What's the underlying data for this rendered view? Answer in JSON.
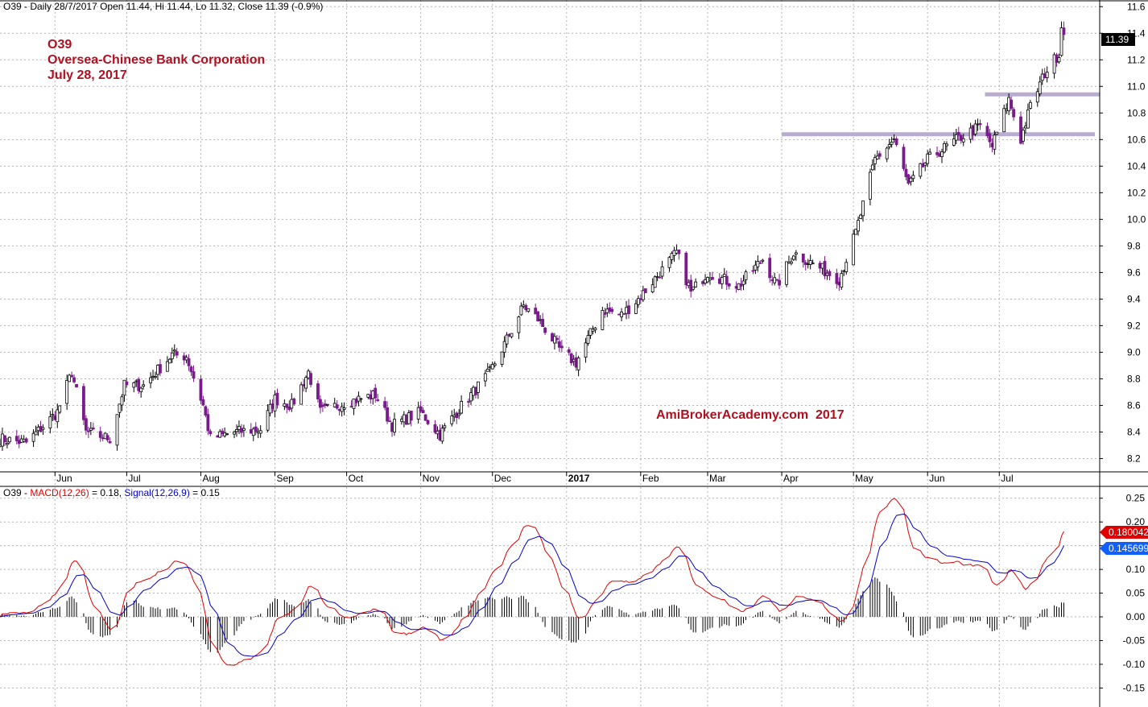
{
  "header": {
    "price_info": "O39 - Daily 28/7/2017 Open 11.44, Hi 11.44, Lo 11.32, Close 11.39 (-0.9%)"
  },
  "annotation": {
    "symbol": "O39",
    "company": "Oversea-Chinese Bank Corporation",
    "date": "July 28, 2017",
    "watermark": "AmiBrokerAcademy.com  2017"
  },
  "macd_header": {
    "prefix": "O39 - ",
    "macd_label": "MACD(12,26)",
    "macd_value": " = 0.18, ",
    "signal_label": "Signal(12,26,9)",
    "signal_value": " = 0.15"
  },
  "colors": {
    "up_candle": "#000000",
    "down_candle": "#7a1a8c",
    "macd_line": "#e00000",
    "signal_line": "#0000d0",
    "annotation_text": "#b01020",
    "support_band": "#b8acd0",
    "last_price_bg": "#000000",
    "macd_badge_bg": "#e00000",
    "signal_badge_bg": "#1060ff"
  },
  "chart_data": [
    {
      "type": "candlestick",
      "title": "O39 - Daily 28/7/2017 Open 11.44, Hi 11.44, Lo 11.32, Close 11.39 (-0.9%)",
      "x_labels": [
        "Jun",
        "Jul",
        "Aug",
        "Sep",
        "Oct",
        "Nov",
        "Dec",
        "2017",
        "Feb",
        "Mar",
        "Apr",
        "May",
        "Jun",
        "Jul"
      ],
      "x_label_dates": [
        "2016-06-01",
        "2016-07-01",
        "2016-08-01",
        "2016-09-01",
        "2016-10-01",
        "2016-11-01",
        "2016-12-01",
        "2017-01-01",
        "2017-02-01",
        "2017-03-01",
        "2017-04-01",
        "2017-05-01",
        "2017-06-01",
        "2017-07-01"
      ],
      "y_ticks": [
        "8.2",
        "8.4",
        "8.6",
        "8.8",
        "9.0",
        "9.2",
        "9.4",
        "9.6",
        "9.8",
        "10.0",
        "10.2",
        "10.4",
        "10.6",
        "10.8",
        "11.0",
        "11.2",
        "11.4",
        "11.6"
      ],
      "ylim": [
        8.1,
        11.65
      ],
      "x_range": [
        "2016-05-09",
        "2017-08-12"
      ],
      "trend_anchors": [
        [
          "2016-05-09",
          8.35
        ],
        [
          "2016-05-20",
          8.32
        ],
        [
          "2016-06-02",
          8.55
        ],
        [
          "2016-06-08",
          8.85
        ],
        [
          "2016-06-14",
          8.4
        ],
        [
          "2016-06-24",
          8.35
        ],
        [
          "2016-06-30",
          8.75
        ],
        [
          "2016-07-08",
          8.75
        ],
        [
          "2016-07-20",
          8.98
        ],
        [
          "2016-07-26",
          8.97
        ],
        [
          "2016-08-02",
          8.6
        ],
        [
          "2016-08-05",
          8.35
        ],
        [
          "2016-08-15",
          8.4
        ],
        [
          "2016-08-26",
          8.42
        ],
        [
          "2016-09-01",
          8.65
        ],
        [
          "2016-09-08",
          8.6
        ],
        [
          "2016-09-15",
          8.85
        ],
        [
          "2016-09-20",
          8.55
        ],
        [
          "2016-09-30",
          8.62
        ],
        [
          "2016-10-13",
          8.68
        ],
        [
          "2016-10-20",
          8.45
        ],
        [
          "2016-11-01",
          8.55
        ],
        [
          "2016-11-09",
          8.38
        ],
        [
          "2016-11-16",
          8.55
        ],
        [
          "2016-11-30",
          8.85
        ],
        [
          "2016-12-10",
          9.2
        ],
        [
          "2016-12-14",
          9.35
        ],
        [
          "2016-12-20",
          9.25
        ],
        [
          "2016-12-30",
          9.0
        ],
        [
          "2017-01-05",
          8.92
        ],
        [
          "2017-01-16",
          9.32
        ],
        [
          "2017-01-24",
          9.28
        ],
        [
          "2017-01-31",
          9.4
        ],
        [
          "2017-02-16",
          9.75
        ],
        [
          "2017-02-22",
          9.45
        ],
        [
          "2017-03-01",
          9.6
        ],
        [
          "2017-03-14",
          9.5
        ],
        [
          "2017-03-24",
          9.7
        ],
        [
          "2017-03-30",
          9.5
        ],
        [
          "2017-04-06",
          9.75
        ],
        [
          "2017-04-25",
          9.55
        ],
        [
          "2017-05-02",
          9.9
        ],
        [
          "2017-05-10",
          10.45
        ],
        [
          "2017-05-18",
          10.6
        ],
        [
          "2017-05-24",
          10.25
        ],
        [
          "2017-06-01",
          10.45
        ],
        [
          "2017-06-15",
          10.62
        ],
        [
          "2017-06-23",
          10.7
        ],
        [
          "2017-06-28",
          10.55
        ],
        [
          "2017-07-05",
          10.9
        ],
        [
          "2017-07-10",
          10.6
        ],
        [
          "2017-07-14",
          10.85
        ],
        [
          "2017-07-20",
          11.1
        ],
        [
          "2017-07-26",
          11.25
        ],
        [
          "2017-07-27",
          11.45
        ],
        [
          "2017-07-28",
          11.39
        ]
      ],
      "support_bands": [
        {
          "from": "2017-04-01",
          "to": "2017-08-10",
          "value": 10.64
        },
        {
          "from": "2017-06-25",
          "to": "2017-08-12",
          "value": 10.94
        }
      ],
      "last_close": 11.39,
      "last_close_label": "11.39"
    },
    {
      "type": "line",
      "title": "O39 - MACD(12,26) = 0.18, Signal(12,26,9) = 0.15",
      "y_ticks": [
        "-0.15",
        "-0.10",
        "-0.05",
        "0.00",
        "0.05",
        "0.10",
        "0.15",
        "0.20",
        "0.25"
      ],
      "ylim": [
        -0.19,
        0.275
      ],
      "series": [
        {
          "name": "MACD(12,26)",
          "last": 0.18,
          "badge": "0.180042"
        },
        {
          "name": "Signal(12,26,9)",
          "last": 0.15,
          "badge": "0.145699"
        }
      ]
    }
  ]
}
